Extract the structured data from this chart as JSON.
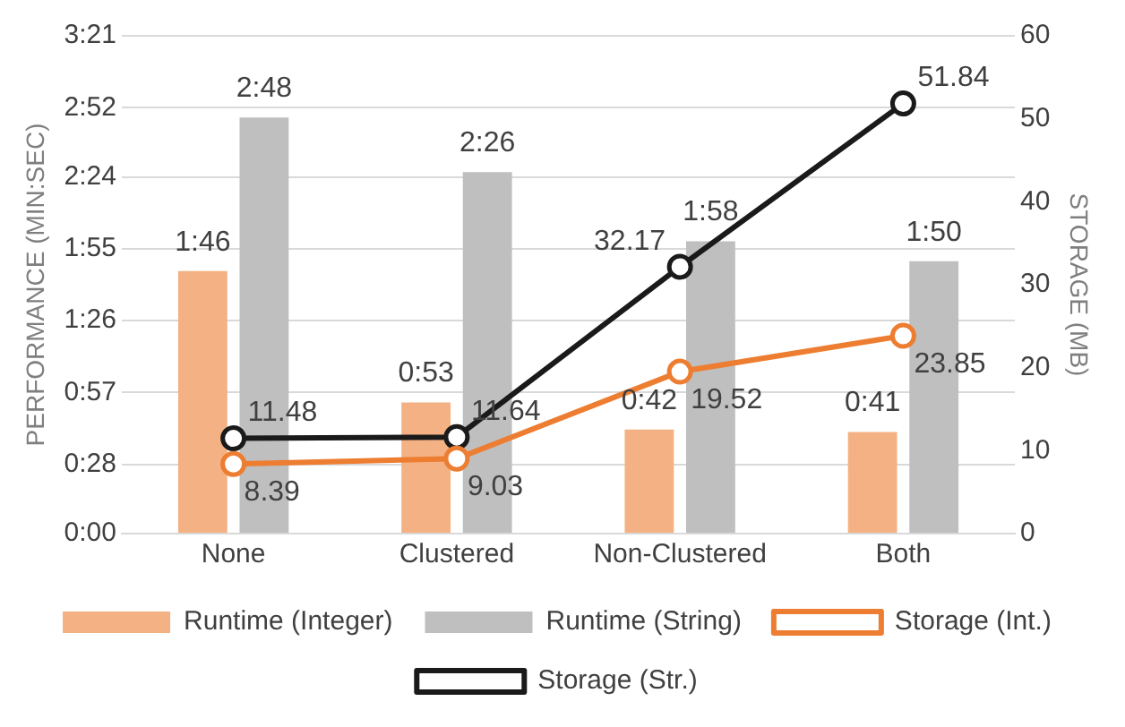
{
  "chart_data": {
    "type": "bar",
    "categories": [
      "None",
      "Clustered",
      "Non-Clustered",
      "Both"
    ],
    "ylabel": "PERFORMANCE (MIN:SEC)",
    "y2label": "STORAGE (MB)",
    "ylim": [
      0,
      201
    ],
    "yticks": [
      {
        "value": 0,
        "label": "0:00"
      },
      {
        "value": 28,
        "label": "0:28"
      },
      {
        "value": 57,
        "label": "0:57"
      },
      {
        "value": 86,
        "label": "1:26"
      },
      {
        "value": 115,
        "label": "1:55"
      },
      {
        "value": 144,
        "label": "2:24"
      },
      {
        "value": 172,
        "label": "2:52"
      },
      {
        "value": 201,
        "label": "3:21"
      }
    ],
    "y2lim": [
      0,
      60
    ],
    "y2ticks": [
      0,
      10,
      20,
      30,
      40,
      50,
      60
    ],
    "grid": "y",
    "legend": "bottom",
    "marker": "circle",
    "series": [
      {
        "name": "Runtime (Integer)",
        "type": "bar",
        "color": "#f4b183",
        "values": [
          106,
          53,
          42,
          41
        ],
        "value_labels": [
          "1:46",
          "0:53",
          "0:42",
          "0:41"
        ]
      },
      {
        "name": "Runtime (String)",
        "type": "bar",
        "color": "#bfbfbf",
        "values": [
          168,
          146,
          118,
          110
        ],
        "value_labels": [
          "2:48",
          "2:26",
          "1:58",
          "1:50"
        ]
      },
      {
        "name": "Storage (Int.)",
        "type": "line",
        "axis": "y2",
        "color": "#ed7d31",
        "values": [
          8.39,
          9.03,
          19.52,
          23.85
        ],
        "value_labels": [
          "8.39",
          "9.03",
          "19.52",
          "23.85"
        ]
      },
      {
        "name": "Storage (Str.)",
        "type": "line",
        "axis": "y2",
        "color": "#1a1a1a",
        "values": [
          11.48,
          11.64,
          32.17,
          51.84
        ],
        "value_labels": [
          "11.48",
          "11.64",
          "32.17",
          "51.84"
        ]
      }
    ]
  }
}
